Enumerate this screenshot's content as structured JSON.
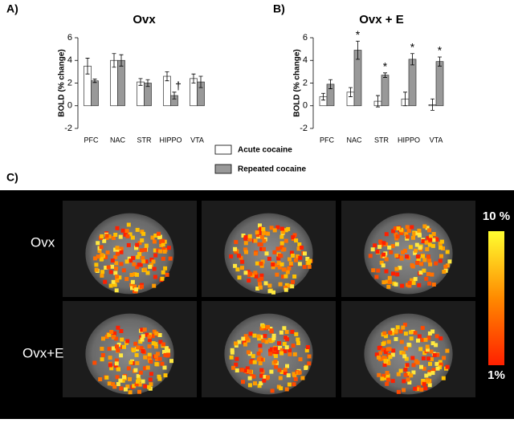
{
  "chart_data": [
    {
      "type": "bar",
      "label": "A)",
      "title": "Ovx",
      "y_label": "BOLD (% change)",
      "categories": [
        "PFC",
        "NAC",
        "STR",
        "HIPPO",
        "VTA"
      ],
      "series": [
        {
          "values": [
            3.5,
            4.0,
            2.1,
            2.6,
            2.4
          ],
          "errors": [
            0.7,
            0.6,
            0.3,
            0.4,
            0.4
          ]
        },
        {
          "values": [
            2.2,
            4.0,
            2.0,
            0.9,
            2.1
          ],
          "errors": [
            0.15,
            0.5,
            0.3,
            0.3,
            0.5
          ],
          "markers": [
            null,
            null,
            null,
            "†",
            null
          ]
        }
      ],
      "ylim": [
        -2,
        6
      ],
      "yticks": [
        -2,
        0,
        2,
        4,
        6
      ]
    },
    {
      "type": "bar",
      "label": "B)",
      "title": "Ovx + E",
      "y_label": "BOLD (% change)",
      "categories": [
        "PFC",
        "NAC",
        "STR",
        "HIPPO",
        "VTA"
      ],
      "series": [
        {
          "values": [
            0.8,
            1.2,
            0.4,
            0.6,
            0.1
          ],
          "errors": [
            0.3,
            0.4,
            0.5,
            0.6,
            0.5
          ]
        },
        {
          "values": [
            1.9,
            4.9,
            2.7,
            4.1,
            3.9
          ],
          "errors": [
            0.4,
            0.8,
            0.2,
            0.5,
            0.4
          ],
          "markers": [
            null,
            "*",
            "*",
            "*",
            "*"
          ]
        }
      ],
      "ylim": [
        -2,
        6
      ],
      "yticks": [
        -2,
        0,
        2,
        4,
        6
      ]
    }
  ],
  "legend": {
    "series": [
      {
        "name": "Acute cocaine",
        "color": "#ffffff"
      },
      {
        "name": "Repeated cocaine",
        "color": "#999999"
      }
    ]
  },
  "panel_c": {
    "label": "C)",
    "rows": [
      "Ovx",
      "Ovx+E"
    ],
    "scale_max": "10 %",
    "scale_min": "1%"
  }
}
